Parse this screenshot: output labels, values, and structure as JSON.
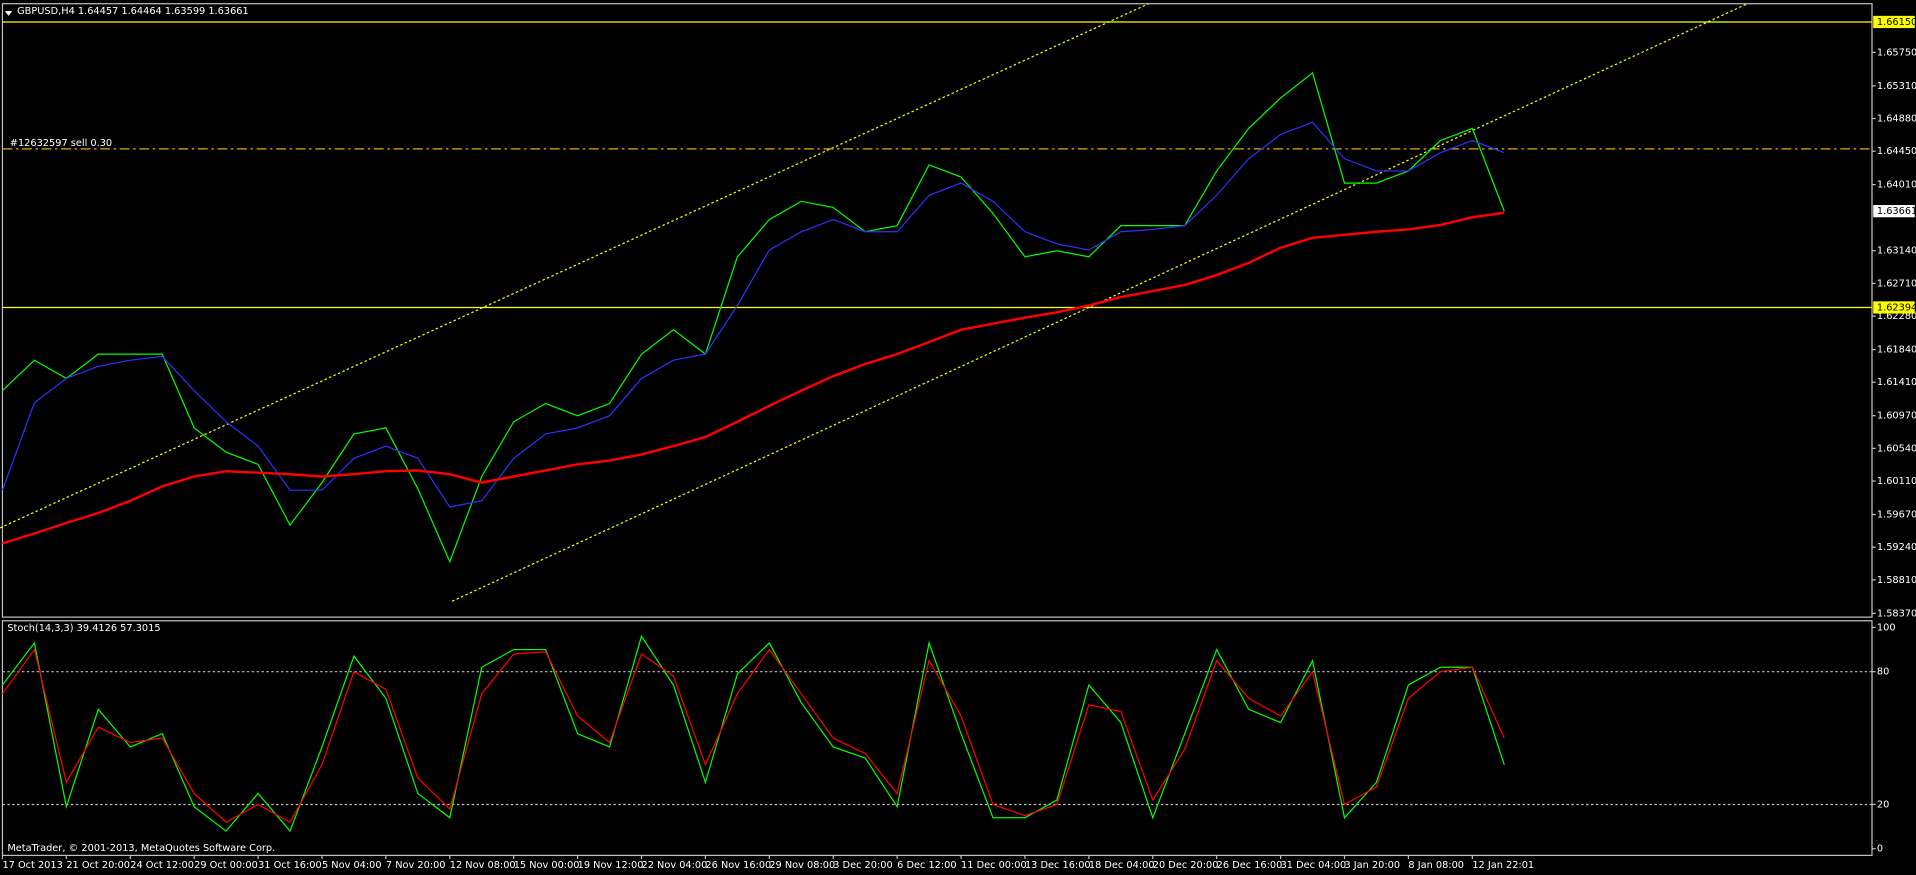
{
  "chart_data": [
    {
      "type": "line",
      "title": "GBPUSD,H4  1.64457 1.64464 1.63599 1.63661",
      "categories": [
        "17 Oct 2013",
        null,
        "21 Oct 20:00",
        null,
        "24 Oct 12:00",
        null,
        "29 Oct 00:00",
        null,
        "31 Oct 16:00",
        null,
        "5 Nov 04:00",
        null,
        "7 Nov 20:00",
        null,
        "12 Nov 08:00",
        null,
        "15 Nov 00:00",
        null,
        "19 Nov 12:00",
        null,
        "22 Nov 04:00",
        null,
        "26 Nov 16:00",
        null,
        "29 Nov 08:00",
        null,
        "3 Dec 20:00",
        null,
        "6 Dec 12:00",
        null,
        "11 Dec 00:00",
        null,
        "13 Dec 16:00",
        null,
        "18 Dec 04:00",
        null,
        "20 Dec 20:00",
        null,
        "26 Dec 16:00",
        null,
        "31 Dec 04:00",
        null,
        "3 Jan 20:00",
        null,
        "8 Jan 08:00",
        null,
        "12 Jan 22:01",
        null
      ],
      "series": [
        {
          "color": "#00ff00",
          "values": [
            1.613,
            1.617,
            1.6146,
            1.6178,
            1.6178,
            1.6178,
            1.6081,
            1.6049,
            1.6033,
            1.5953,
            1.6009,
            1.6073,
            1.6081,
            1.6001,
            1.5905,
            1.6017,
            1.6089,
            1.6113,
            1.6097,
            1.6113,
            1.6178,
            1.621,
            1.6178,
            1.6306,
            1.6355,
            1.6379,
            1.6371,
            1.6339,
            1.6347,
            1.6427,
            1.6411,
            1.6363,
            1.6306,
            1.6314,
            1.6306,
            1.6347,
            1.6347,
            1.6347,
            1.6419,
            1.6475,
            1.6515,
            1.6548,
            1.6403,
            1.6403,
            1.6419,
            1.6459,
            1.6475,
            1.6366
          ]
        },
        {
          "color": "#3030ff",
          "values": [
            1.5999,
            1.6114,
            1.6146,
            1.6162,
            1.617,
            1.6175,
            1.613,
            1.6089,
            1.6057,
            1.5999,
            1.5999,
            1.6041,
            1.6057,
            1.6041,
            1.5977,
            1.5985,
            1.6041,
            1.6073,
            1.6081,
            1.6097,
            1.6146,
            1.617,
            1.6178,
            1.6242,
            1.6315,
            1.6339,
            1.6355,
            1.6339,
            1.6339,
            1.6387,
            1.6403,
            1.6379,
            1.6339,
            1.6323,
            1.6315,
            1.6339,
            1.6342,
            1.6347,
            1.6387,
            1.6435,
            1.6467,
            1.6483,
            1.6435,
            1.6419,
            1.6419,
            1.6443,
            1.6459,
            1.6443
          ]
        },
        {
          "color": "#ff0000",
          "values": [
            1.5929,
            1.5942,
            1.5956,
            1.5969,
            1.5985,
            1.6004,
            1.6017,
            1.6024,
            1.6022,
            1.602,
            1.6017,
            1.602,
            1.6024,
            1.6025,
            1.602,
            1.6009,
            1.6017,
            1.6025,
            1.6033,
            1.6038,
            1.6046,
            1.6057,
            1.6069,
            1.6089,
            1.611,
            1.613,
            1.6149,
            1.6165,
            1.6178,
            1.6194,
            1.621,
            1.6218,
            1.6226,
            1.6233,
            1.6242,
            1.6253,
            1.6261,
            1.6269,
            1.6282,
            1.6298,
            1.6318,
            1.6331,
            1.6335,
            1.6339,
            1.6342,
            1.6348,
            1.6358,
            1.6364
          ]
        }
      ],
      "ylim": [
        1.5832,
        1.6639
      ],
      "yticks": [
        {
          "value": 1.6575,
          "label": "1.65750"
        },
        {
          "value": 1.6531,
          "label": "1.65310"
        },
        {
          "value": 1.6488,
          "label": "1.64880"
        },
        {
          "value": 1.6445,
          "label": "1.64450"
        },
        {
          "value": 1.6401,
          "label": "1.64010"
        },
        {
          "value": 1.6314,
          "label": "1.63140"
        },
        {
          "value": 1.6271,
          "label": "1.62710"
        },
        {
          "value": 1.6228,
          "label": "1.62280"
        },
        {
          "value": 1.6184,
          "label": "1.61840"
        },
        {
          "value": 1.6141,
          "label": "1.61410"
        },
        {
          "value": 1.6097,
          "label": "1.60970"
        },
        {
          "value": 1.6054,
          "label": "1.60540"
        },
        {
          "value": 1.6011,
          "label": "1.60110"
        },
        {
          "value": 1.5967,
          "label": "1.59670"
        },
        {
          "value": 1.5924,
          "label": "1.59240"
        },
        {
          "value": 1.5881,
          "label": "1.58810"
        },
        {
          "value": 1.5837,
          "label": "1.58370"
        }
      ],
      "hlines": [
        {
          "value": 1.6615,
          "label": "1.66150"
        },
        1.62394
      ],
      "hline_color": "#ffff00",
      "order_line": {
        "value": 1.6448,
        "label": "#12632597 sell 0.30"
      },
      "current_price": 1.63661
    },
    {
      "type": "line",
      "title": "Stoch(14,3,3) 39.4126 57.3015",
      "series": [
        {
          "color": "#00ff00",
          "values": [
            74,
            93,
            19,
            63,
            46,
            52,
            19,
            8,
            25,
            8,
            46,
            87,
            68,
            25,
            14,
            82,
            90,
            90,
            52,
            46,
            96,
            74,
            30,
            79,
            93,
            66,
            46,
            41,
            19,
            93,
            52,
            14,
            14,
            22,
            74,
            57,
            14,
            52,
            90,
            63,
            57,
            85,
            14,
            30,
            74,
            82,
            82,
            38
          ]
        },
        {
          "color": "#ff0000",
          "values": [
            70,
            90,
            30,
            55,
            48,
            50,
            25,
            12,
            20,
            12,
            38,
            80,
            72,
            32,
            18,
            70,
            88,
            89,
            60,
            48,
            88,
            78,
            38,
            70,
            90,
            70,
            50,
            43,
            25,
            85,
            60,
            20,
            15,
            20,
            65,
            62,
            22,
            45,
            85,
            68,
            60,
            80,
            20,
            28,
            68,
            80,
            82,
            50
          ]
        }
      ],
      "ylim": [
        -3,
        103
      ],
      "yticks": [
        0,
        20,
        80,
        100
      ],
      "levels": [
        20,
        80
      ]
    }
  ],
  "footer": "MetaTrader, © 2001-2013, MetaQuotes Software Corp."
}
